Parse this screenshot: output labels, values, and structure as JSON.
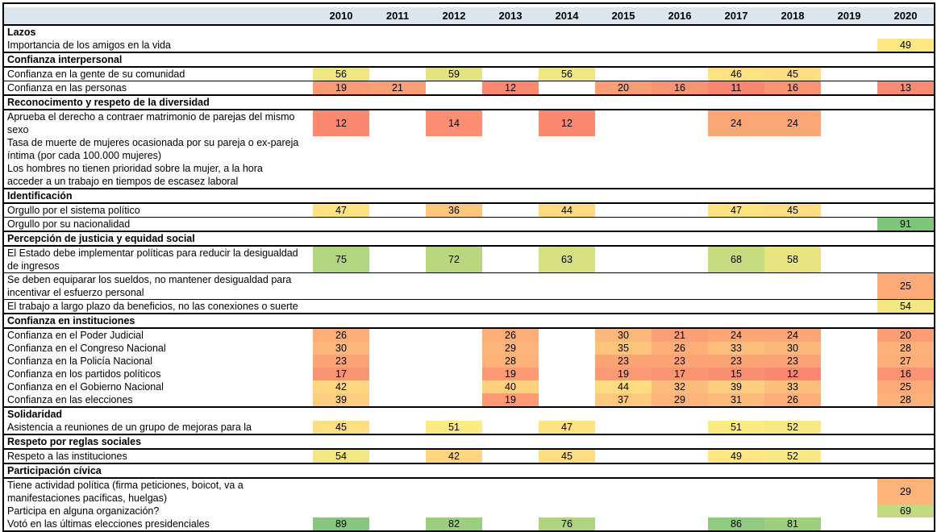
{
  "chart_data": {
    "type": "heatmap",
    "title": "",
    "columns": [
      "2010",
      "2011",
      "2012",
      "2013",
      "2014",
      "2015",
      "2016",
      "2017",
      "2018",
      "2019",
      "2020"
    ],
    "header_bg": "#DCE6F1",
    "border_color": "#000000",
    "color_scale": {
      "min_value": 0,
      "mid_value": 50,
      "max_value": 100,
      "min_color": "#F8696B",
      "mid_color": "#FFEB84",
      "max_color": "#63BE7B"
    },
    "sections": [
      {
        "title": "Lazos",
        "header_rule": false,
        "rows": [
          {
            "label": "Importancia de los amigos en la vida",
            "values": [
              null,
              null,
              null,
              null,
              null,
              null,
              null,
              null,
              null,
              null,
              49
            ]
          }
        ]
      },
      {
        "title": "Confianza interpersonal",
        "header_rule": true,
        "rows": [
          {
            "label": "Confianza en la gente de su comunidad",
            "divider": true,
            "values": [
              56,
              null,
              59,
              null,
              56,
              null,
              null,
              46,
              45,
              null,
              null
            ]
          },
          {
            "label": "Confianza en las personas",
            "values": [
              19,
              21,
              null,
              12,
              null,
              20,
              16,
              11,
              16,
              null,
              13
            ]
          }
        ]
      },
      {
        "title": "Reconocimento y respeto de la diversidad",
        "header_rule": true,
        "rows": [
          {
            "label": "Aprueba el derecho a contraer matrimonio de parejas del mismo\nsexo",
            "values": [
              12,
              null,
              14,
              null,
              12,
              null,
              null,
              24,
              24,
              null,
              null
            ]
          },
          {
            "label": "Tasa de muerte de mujeres ocasionada por su pareja o ex-pareja\níntima (por cada 100.000 mujeres)",
            "values": [
              null,
              null,
              null,
              null,
              null,
              null,
              null,
              null,
              null,
              null,
              null
            ]
          },
          {
            "label": "Los hombres no tienen prioridad sobre la mujer, a la hora\nacceder a un trabajo en tiempos de escasez laboral",
            "values": [
              null,
              null,
              null,
              null,
              null,
              null,
              null,
              null,
              null,
              null,
              null
            ]
          }
        ]
      },
      {
        "title": "Identificación",
        "header_rule": true,
        "rows": [
          {
            "label": "Orgullo por el sistema político",
            "divider": true,
            "values": [
              47,
              null,
              36,
              null,
              44,
              null,
              null,
              47,
              45,
              null,
              null
            ]
          },
          {
            "label": "Orgullo por su nacionalidad",
            "values": [
              null,
              null,
              null,
              null,
              null,
              null,
              null,
              null,
              null,
              null,
              91
            ]
          }
        ]
      },
      {
        "title": "Percepción de justicia y equidad social",
        "header_rule": true,
        "rows": [
          {
            "label": "El Estado debe implementar políticas para reducir la desigualdad\nde ingresos",
            "divider": true,
            "values": [
              75,
              null,
              72,
              null,
              63,
              null,
              null,
              68,
              58,
              null,
              null
            ]
          },
          {
            "label": "Se deben equiparar los sueldos, no mantener desigualdad para\nincentivar el esfuerzo personal",
            "divider": true,
            "values": [
              null,
              null,
              null,
              null,
              null,
              null,
              null,
              null,
              null,
              null,
              25
            ]
          },
          {
            "label": "El trabajo a largo plazo da beneficios, no las conexiones o suerte",
            "values": [
              null,
              null,
              null,
              null,
              null,
              null,
              null,
              null,
              null,
              null,
              54
            ]
          }
        ]
      },
      {
        "title": "Confianza en instituciones",
        "header_rule": true,
        "rows": [
          {
            "label": "Confianza en el Poder Judicial",
            "values": [
              26,
              null,
              null,
              26,
              null,
              30,
              21,
              24,
              24,
              null,
              20
            ]
          },
          {
            "label": "Confianza en el Congreso Nacional",
            "values": [
              30,
              null,
              null,
              29,
              null,
              35,
              26,
              33,
              30,
              null,
              28
            ]
          },
          {
            "label": "Confianza en la Policía Nacional",
            "values": [
              23,
              null,
              null,
              28,
              null,
              23,
              23,
              23,
              23,
              null,
              27
            ]
          },
          {
            "label": "Confianza en los partidos políticos",
            "values": [
              17,
              null,
              null,
              19,
              null,
              19,
              17,
              15,
              12,
              null,
              16
            ]
          },
          {
            "label": "Confianza en el Gobierno Nacional",
            "values": [
              42,
              null,
              null,
              40,
              null,
              44,
              32,
              39,
              33,
              null,
              25
            ]
          },
          {
            "label": "Confianza en las elecciones",
            "values": [
              39,
              null,
              null,
              19,
              null,
              37,
              29,
              31,
              26,
              null,
              28
            ]
          }
        ]
      },
      {
        "title": "Solidaridad",
        "header_rule": false,
        "rows": [
          {
            "label": "Asistencia a reuniones de un grupo de mejoras para la",
            "values": [
              45,
              null,
              51,
              null,
              47,
              null,
              null,
              51,
              52,
              null,
              null
            ]
          }
        ]
      },
      {
        "title": "Respeto por reglas sociales",
        "header_rule": true,
        "rows": [
          {
            "label": "Respeto a las instituciones",
            "values": [
              54,
              null,
              42,
              null,
              45,
              null,
              null,
              49,
              52,
              null,
              null
            ]
          }
        ]
      },
      {
        "title": "Participación cívica",
        "header_rule": true,
        "rows": [
          {
            "label": "Tiene actividad política (firma peticiones, boicot, va a\nmanifestaciones pacíficas, huelgas)",
            "values": [
              null,
              null,
              null,
              null,
              null,
              null,
              null,
              null,
              null,
              null,
              29
            ]
          },
          {
            "label": "Participa en alguna organización?",
            "values": [
              null,
              null,
              null,
              null,
              null,
              null,
              null,
              null,
              null,
              null,
              69
            ]
          },
          {
            "label": "Votó en las últimas elecciones presidenciales",
            "values": [
              89,
              null,
              82,
              null,
              76,
              null,
              null,
              86,
              81,
              null,
              null
            ]
          }
        ]
      }
    ]
  }
}
